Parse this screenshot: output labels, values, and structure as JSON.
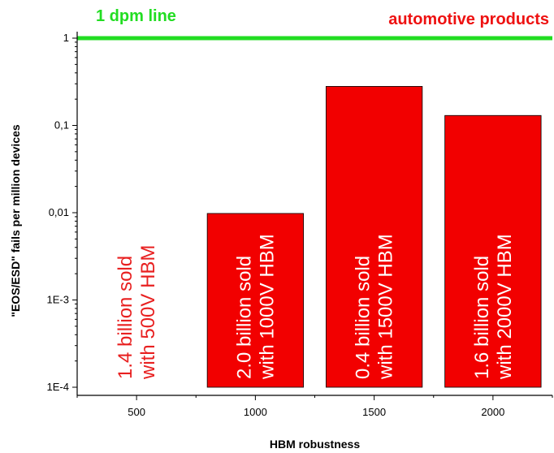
{
  "chart_data": {
    "type": "bar",
    "categories": [
      "500",
      "1000",
      "1500",
      "2000"
    ],
    "values": [
      null,
      0.0098,
      0.28,
      0.13
    ],
    "ylim": [
      0.0001,
      1
    ],
    "yscale": "log",
    "ytick_values": [
      1,
      0.1,
      0.01,
      0.001,
      0.0001
    ],
    "ytick_labels": [
      "1",
      "0,1",
      "0,01",
      "1E-3",
      "1E-4"
    ],
    "xlabel": "HBM robustness",
    "ylabel": "\"EOS/ESD\" fails per million devices",
    "reference_line": {
      "value": 1,
      "label": "1 dpm line",
      "color": "#22dd22"
    },
    "top_right_label": "automotive products",
    "bar_color": "#f20000",
    "bar_labels": [
      {
        "line1": "1.4 billion sold",
        "line2": "with 500V HBM",
        "color": "#e82020"
      },
      {
        "line1": "2.0 billion sold",
        "line2": "with 1000V HBM",
        "color": "#ffffff"
      },
      {
        "line1": "0.4 billion sold",
        "line2": "with 1500V HBM",
        "color": "#ffffff"
      },
      {
        "line1": "1.6 billion sold",
        "line2": "with 2000V HBM",
        "color": "#ffffff"
      }
    ],
    "grid": false,
    "legend": "none"
  }
}
